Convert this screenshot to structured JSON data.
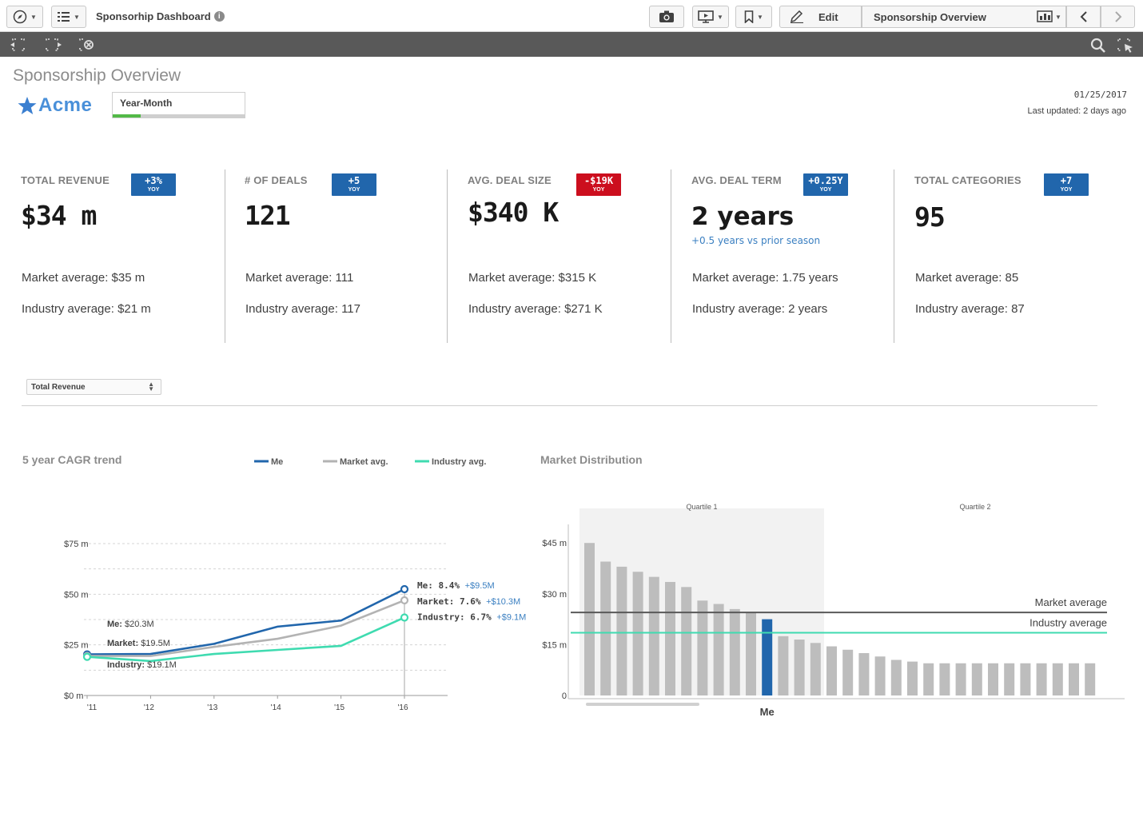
{
  "toolbar": {
    "app_title": "Sponsorhip Dashboard",
    "edit_label": "Edit",
    "sheet_name": "Sponsorship Overview"
  },
  "header": {
    "sheet_title": "Sponsorship Overview",
    "logo_text": "Acme",
    "filter_label": "Year-Month",
    "filter_fill_fraction": 0.21,
    "date": "01/25/2017",
    "last_updated": "Last updated: 2 days ago"
  },
  "colors": {
    "me": "#2166ac",
    "market": "#b3b3b3",
    "industry": "#3fdbb0",
    "badge_positive": "#2166ac",
    "badge_negative": "#cc0e1e"
  },
  "kpis": [
    {
      "label": "TOTAL REVENUE",
      "badge_value": "+3%",
      "badge_suffix": "YOY",
      "badge_color": "#2166ac",
      "value": "$34 m",
      "sub": "",
      "market": "Market average: $35 m",
      "industry": "Industry average: $21 m"
    },
    {
      "label": "# OF DEALS",
      "badge_value": "+5",
      "badge_suffix": "YOY",
      "badge_color": "#2166ac",
      "value": "121",
      "sub": "",
      "market": "Market average: 111",
      "industry": "Industry average: 117"
    },
    {
      "label": "AVG. DEAL SIZE",
      "badge_value": "-$19K",
      "badge_suffix": "YOY",
      "badge_color": "#cc0e1e",
      "value": "$340 K",
      "sub": "",
      "market": "Market average: $315 K",
      "industry": "Industry average: $271 K"
    },
    {
      "label": "AVG. DEAL TERM",
      "badge_value": "+0.25Y",
      "badge_suffix": "YOY",
      "badge_color": "#2166ac",
      "value": "2 years",
      "sub": "+0.5 years vs prior season",
      "market": "Market average: 1.75 years",
      "industry": "Industry average: 2 years"
    },
    {
      "label": "TOTAL CATEGORIES",
      "badge_value": "+7",
      "badge_suffix": "YOY",
      "badge_color": "#2166ac",
      "value": "95",
      "sub": "",
      "market": "Market average: 85",
      "industry": "Industry average: 87"
    }
  ],
  "measure_select": {
    "value": "Total Revenue"
  },
  "chart_data": [
    {
      "type": "line",
      "title": "5 year CAGR trend",
      "x": [
        "'11",
        "'12",
        "'13",
        "'14",
        "'15",
        "'16"
      ],
      "ylim": [
        0,
        75
      ],
      "yticks": [
        "$0 m",
        "$25 m",
        "$50 m",
        "$75 m"
      ],
      "series": [
        {
          "name": "Me",
          "values": [
            20.3,
            20.5,
            25.5,
            34,
            37,
            52.5
          ],
          "start_label": "Me:",
          "start_value": "$20.3M",
          "end_label": "Me: 8.4%",
          "end_delta": "+$9.5M"
        },
        {
          "name": "Market avg.",
          "values": [
            19.5,
            19.5,
            24,
            28,
            34.5,
            47
          ],
          "start_label": "Market:",
          "start_value": "$19.5M",
          "end_label": "Market: 7.6%",
          "end_delta": "+$10.3M"
        },
        {
          "name": "Industry avg.",
          "values": [
            19.1,
            17,
            20.5,
            22.5,
            24.5,
            38.5
          ],
          "start_label": "Industry:",
          "start_value": "$19.1M",
          "end_label": "Industry: 6.7%",
          "end_delta": "+$9.1M"
        }
      ],
      "legend": [
        "Me",
        "Market avg.",
        "Industry avg."
      ],
      "grid": true
    },
    {
      "type": "bar",
      "title": "Market Distribution",
      "ylim": [
        0,
        50
      ],
      "yticks": [
        "0",
        "$15 m",
        "$30 m",
        "$45 m"
      ],
      "ytick_values": [
        0,
        15,
        30,
        45
      ],
      "values": [
        45,
        39.5,
        38,
        36.5,
        35,
        33.5,
        32,
        28,
        27,
        25.5,
        24.5,
        22.5,
        17.5,
        16.5,
        15.5,
        14.5,
        13.5,
        12.5,
        11.5,
        10.5,
        10,
        9.5,
        9.5,
        9.5,
        9.5,
        9.5,
        9.5,
        9.5,
        9.5,
        9.5,
        9.5,
        9.5
      ],
      "highlight_index": 11,
      "highlight_label": "Me",
      "quartile_labels": [
        "Quartile 1",
        "Quartile 2"
      ],
      "quartile1_bars": 15,
      "reference_lines": [
        {
          "name": "Market average",
          "value": 24.5
        },
        {
          "name": "Industry average",
          "value": 18.5
        }
      ]
    }
  ]
}
